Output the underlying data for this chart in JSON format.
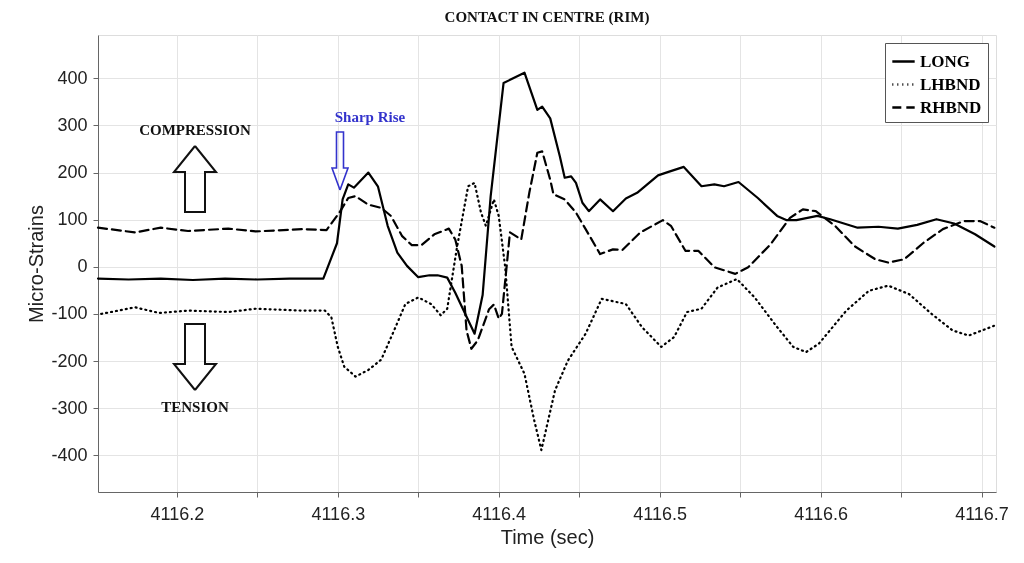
{
  "chart_data": {
    "type": "line",
    "title": "CONTACT IN CENTRE (RIM)",
    "xlabel": "Time (sec)",
    "ylabel": "Micro-Strains",
    "xlim": [
      4116.151,
      4116.709
    ],
    "ylim": [
      -478,
      492
    ],
    "xticks": [
      4116.2,
      {
        "value": 4116.25,
        "label": null
      },
      4116.3,
      {
        "value": 4116.35,
        "label": null
      },
      4116.4,
      {
        "value": 4116.45,
        "label": null
      },
      4116.5,
      {
        "value": 4116.55,
        "label": null
      },
      4116.6,
      {
        "value": 4116.65,
        "label": null
      },
      4116.7
    ],
    "yticks": [
      -400,
      -300,
      -200,
      -100,
      0,
      100,
      200,
      300,
      400
    ],
    "grid": true,
    "legend": "top right",
    "marker": "none",
    "annotations": [
      "COMPRESSION",
      "TENSION",
      "Sharp Rise"
    ],
    "series": [
      {
        "name": "LONG",
        "color": "#000000",
        "line_style": "solid",
        "x": [
          4116.151,
          4116.17,
          4116.19,
          4116.21,
          4116.23,
          4116.25,
          4116.27,
          4116.291,
          4116.2995,
          4116.303,
          4116.3065,
          4116.31,
          4116.319,
          4116.325,
          4116.331,
          4116.337,
          4116.343,
          4116.35,
          4116.357,
          4116.362,
          4116.368,
          4116.373,
          4116.385,
          4116.39,
          4116.395,
          4116.4,
          4116.403,
          4116.416,
          4116.424,
          4116.427,
          4116.432,
          4116.438,
          4116.441,
          4116.445,
          4116.448,
          4116.452,
          4116.456,
          4116.463,
          4116.471,
          4116.479,
          4116.486,
          4116.499,
          4116.505,
          4116.515,
          4116.526,
          4116.534,
          4116.54,
          4116.549,
          4116.561,
          4116.573,
          4116.579,
          4116.585,
          4116.598,
          4116.606,
          4116.623,
          4116.636,
          4116.648,
          4116.66,
          4116.672,
          4116.683,
          4116.696,
          4116.708
        ],
        "values": [
          -25,
          -27,
          -25,
          -28,
          -25,
          -27,
          -25,
          -25,
          50,
          143,
          175,
          168,
          200,
          170,
          87,
          30,
          2,
          -22,
          -18,
          -18,
          -23,
          -55,
          -142,
          -60,
          150,
          300,
          390,
          412,
          333,
          340,
          315,
          234,
          189,
          192,
          178,
          136,
          118,
          143,
          118,
          145,
          157,
          194,
          201,
          212,
          171,
          175,
          171,
          180,
          146,
          108,
          99,
          99,
          108,
          101,
          83,
          85,
          81,
          89,
          101,
          92,
          69,
          43
        ]
      },
      {
        "name": "LHBND",
        "color": "#000000",
        "line_style": "dotted",
        "x": [
          4116.153,
          4116.174,
          4116.189,
          4116.207,
          4116.232,
          4116.249,
          4116.278,
          4116.292,
          4116.296,
          4116.3,
          4116.304,
          4116.311,
          4116.319,
          4116.327,
          4116.335,
          4116.342,
          4116.35,
          4116.358,
          4116.364,
          4116.368,
          4116.374,
          4116.381,
          4116.385,
          4116.389,
          4116.392,
          4116.397,
          4116.4,
          4116.404,
          4116.408,
          4116.416,
          4116.422,
          4116.4265,
          4116.435,
          4116.443,
          4116.454,
          4116.464,
          4116.479,
          4116.489,
          4116.501,
          4116.509,
          4116.517,
          4116.526,
          4116.536,
          4116.548,
          4116.559,
          4116.573,
          4116.583,
          4116.591,
          4116.599,
          4116.616,
          4116.63,
          4116.642,
          4116.655,
          4116.669,
          4116.682,
          4116.692,
          4116.708
        ],
        "values": [
          -100,
          -86,
          -98,
          -93,
          -96,
          -89,
          -93,
          -93,
          -107,
          -170,
          -212,
          -233,
          -219,
          -197,
          -135,
          -79,
          -65,
          -79,
          -103,
          -89,
          40,
          171,
          178,
          115,
          87,
          143,
          108,
          0,
          -170,
          -227,
          -325,
          -389,
          -262,
          -199,
          -142,
          -68,
          -79,
          -128,
          -170,
          -149,
          -96,
          -89,
          -44,
          -26,
          -65,
          -128,
          -170,
          -181,
          -163,
          -93,
          -51,
          -40,
          -58,
          -100,
          -135,
          -146,
          -125
        ]
      },
      {
        "name": "RHBND",
        "color": "#000000",
        "line_style": "dashed",
        "x": [
          4116.151,
          4116.174,
          4116.19,
          4116.207,
          4116.232,
          4116.249,
          4116.278,
          4116.293,
          4116.301,
          4116.3065,
          4116.311,
          4116.319,
          4116.327,
          4116.333,
          4116.34,
          4116.346,
          4116.352,
          4116.36,
          4116.369,
          4116.373,
          4116.377,
          4116.38,
          4116.383,
          4116.387,
          4116.394,
          4116.397,
          4116.4,
          4116.402,
          4116.407,
          4116.414,
          4116.419,
          4116.424,
          4116.427,
          4116.432,
          4116.434,
          4116.441,
          4116.448,
          4116.454,
          4116.463,
          4116.471,
          4116.477,
          4116.488,
          4116.502,
          4116.507,
          4116.516,
          4116.524,
          4116.534,
          4116.547,
          4116.555,
          4116.569,
          4116.581,
          4116.589,
          4116.597,
          4116.609,
          4116.621,
          4116.634,
          4116.642,
          4116.652,
          4116.664,
          4116.676,
          4116.689,
          4116.699,
          4116.708
        ],
        "values": [
          83,
          73,
          83,
          76,
          81,
          75,
          80,
          78,
          115,
          146,
          150,
          132,
          125,
          108,
          65,
          46,
          46,
          69,
          81,
          58,
          2,
          -135,
          -174,
          -156,
          -90,
          -80,
          -110,
          -100,
          73,
          58,
          157,
          242,
          245,
          185,
          154,
          143,
          115,
          80,
          27,
          37,
          36,
          73,
          99,
          87,
          34,
          34,
          -1,
          -15,
          -1,
          48,
          104,
          122,
          118,
          87,
          44,
          16,
          9,
          16,
          51,
          80,
          97,
          97,
          83
        ]
      }
    ]
  }
}
